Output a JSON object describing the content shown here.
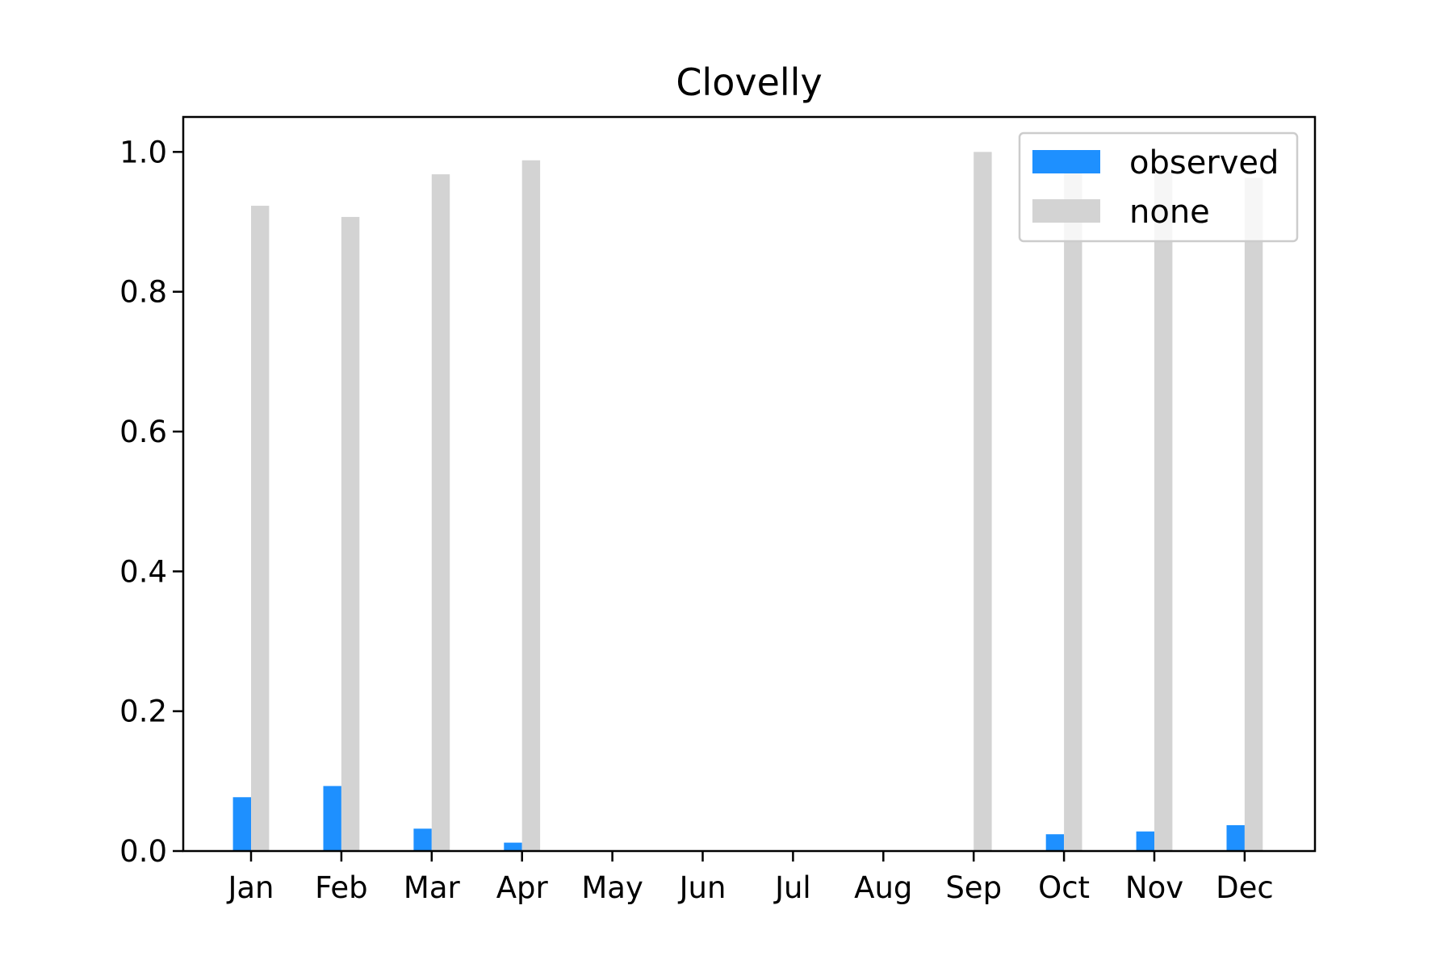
{
  "chart_data": {
    "type": "bar",
    "title": "Clovelly",
    "xlabel": "",
    "ylabel": "",
    "categories": [
      "Jan",
      "Feb",
      "Mar",
      "Apr",
      "May",
      "Jun",
      "Jul",
      "Aug",
      "Sep",
      "Oct",
      "Nov",
      "Dec"
    ],
    "series": [
      {
        "name": "observed",
        "color": "#1e90ff",
        "values": [
          0.077,
          0.093,
          0.032,
          0.012,
          0,
          0,
          0,
          0,
          0,
          0.024,
          0.028,
          0.037
        ]
      },
      {
        "name": "none",
        "color": "#d3d3d3",
        "values": [
          0.923,
          0.907,
          0.968,
          0.988,
          0,
          0,
          0,
          0,
          1.0,
          0.976,
          0.972,
          0.963
        ]
      }
    ],
    "ylim": [
      0,
      1.05
    ],
    "yticks": [
      "0.0",
      "0.2",
      "0.4",
      "0.6",
      "0.8",
      "1.0"
    ],
    "grid": false,
    "legend_position": "top-right"
  }
}
